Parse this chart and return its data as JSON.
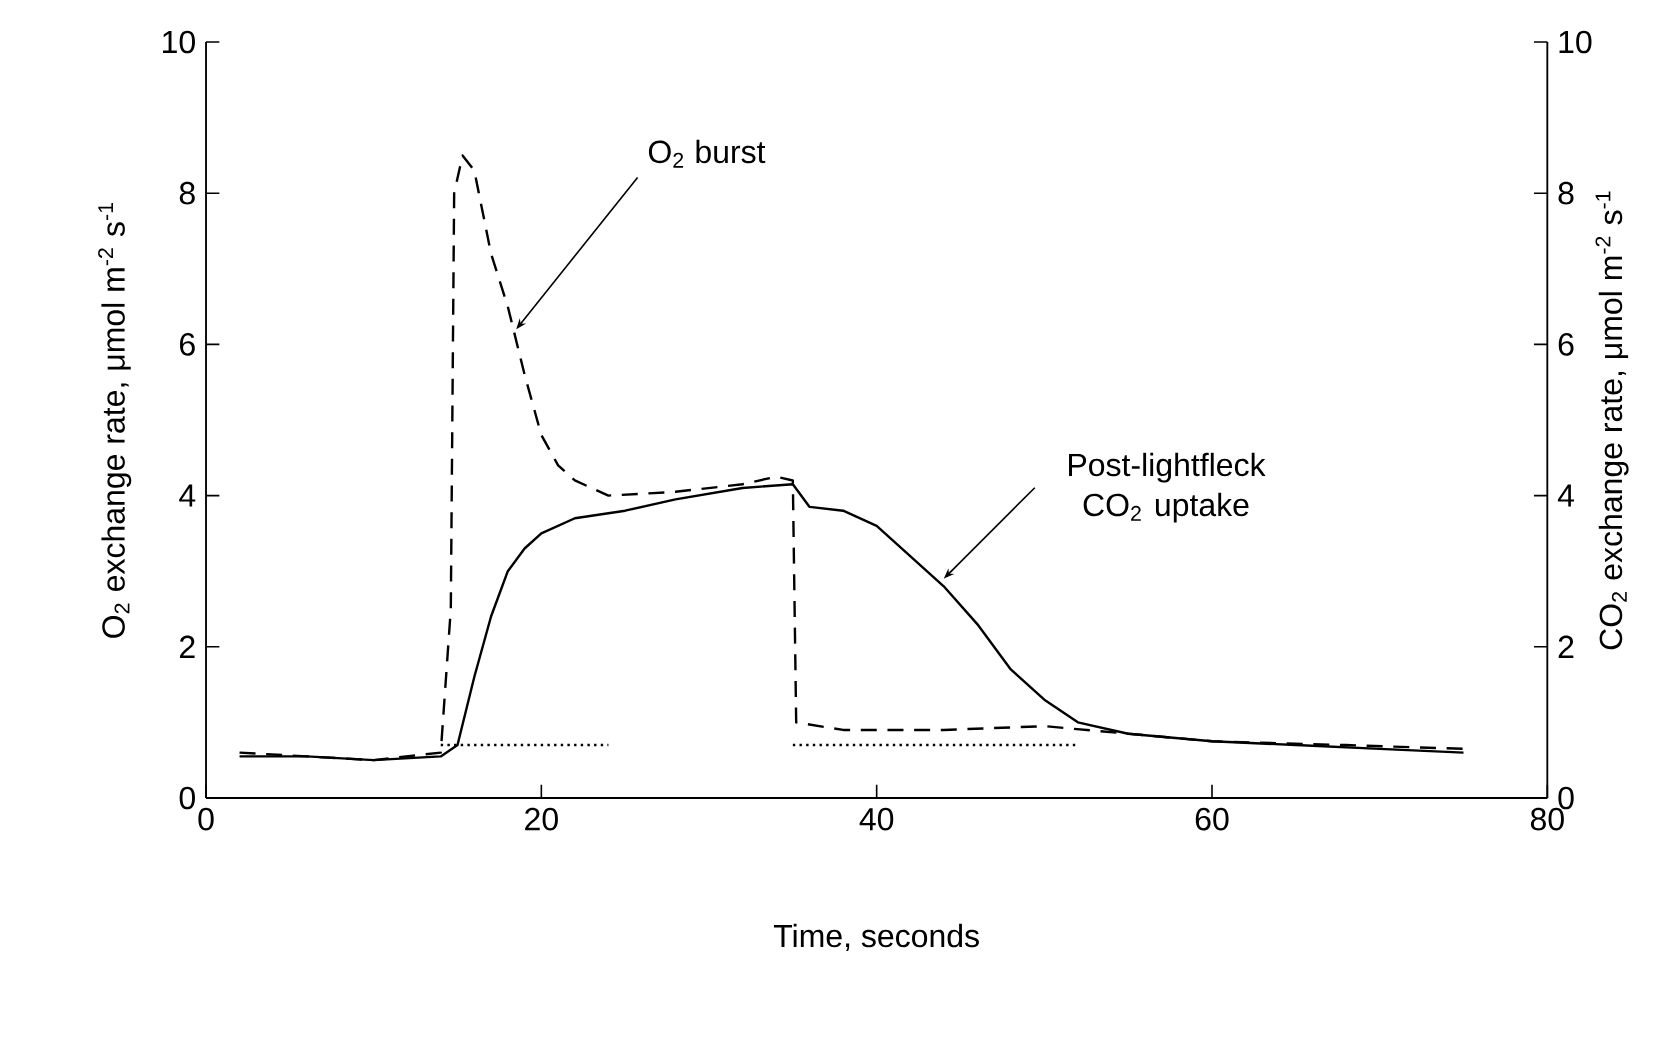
{
  "chart_data": {
    "type": "line",
    "xlabel": "Time, seconds",
    "ylabel": "O$_{2}$ exchange rate, μmol m$^{-2}$ s$^{-1}$",
    "y2label": "CO$_{2}$ exchange rate, μmol m$^{-2}$ s$^{-1}$",
    "xlim": [
      0,
      80
    ],
    "xticks": [
      0,
      20,
      40,
      60,
      80
    ],
    "ylim": [
      0,
      10
    ],
    "yticks": [
      0,
      2,
      4,
      6,
      8,
      10
    ],
    "y2lim": [
      0,
      10
    ],
    "y2ticks": [
      0,
      2,
      4,
      6,
      8,
      10
    ],
    "series": [
      {
        "color": "#000000",
        "line_style": "dashed",
        "x": [
          2,
          6,
          10,
          14,
          14.6,
          14.8,
          15.3,
          16,
          17,
          18,
          19,
          20,
          21,
          22,
          24,
          28,
          32,
          34,
          35,
          35.2,
          38,
          44,
          50,
          55,
          60,
          68,
          75
        ],
        "values": [
          0.6,
          0.55,
          0.5,
          0.6,
          2.5,
          8.0,
          8.5,
          8.3,
          7.2,
          6.5,
          5.6,
          4.8,
          4.4,
          4.2,
          4.0,
          4.05,
          4.15,
          4.25,
          4.2,
          1.0,
          0.9,
          0.9,
          0.95,
          0.85,
          0.75,
          0.7,
          0.65
        ]
      },
      {
        "color": "#000000",
        "line_style": "solid",
        "axis": "y2",
        "x": [
          2,
          6,
          10,
          14,
          15,
          16,
          17,
          18,
          19,
          20,
          22,
          25,
          28,
          32,
          35,
          36,
          38,
          40,
          42,
          44,
          46,
          48,
          50,
          52,
          55,
          60,
          65,
          70,
          75
        ],
        "values": [
          0.55,
          0.55,
          0.5,
          0.55,
          0.7,
          1.6,
          2.4,
          3.0,
          3.3,
          3.5,
          3.7,
          3.8,
          3.95,
          4.1,
          4.15,
          3.85,
          3.8,
          3.6,
          3.2,
          2.8,
          2.3,
          1.7,
          1.3,
          1.0,
          0.85,
          0.75,
          0.7,
          0.65,
          0.6
        ]
      },
      {
        "color": "#000000",
        "line_style": "dotted",
        "x": [
          14,
          24
        ],
        "values": [
          0.7,
          0.7
        ]
      },
      {
        "color": "#000000",
        "line_style": "dotted",
        "x": [
          35,
          52
        ],
        "values": [
          0.7,
          0.7
        ]
      }
    ],
    "annotations": [
      {
        "text": "O$_{2}$ burst",
        "x": 18.5,
        "y": 6.2
      },
      {
        "text": "Post-lightfleck CO$_{2}$ uptake",
        "x": 44,
        "y": 2.9
      }
    ]
  }
}
